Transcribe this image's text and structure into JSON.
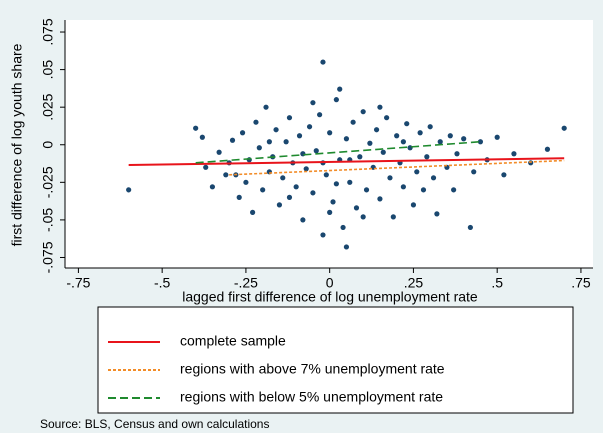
{
  "chart_data": {
    "type": "scatter",
    "xlabel": "lagged first difference of log unemployment rate",
    "ylabel": "first difference of log youth share",
    "note": "Source: BLS, Census and own calculations",
    "xlim": [
      -0.79,
      0.786
    ],
    "ylim": [
      -0.082,
      0.083
    ],
    "xticks": [
      {
        "value": -0.75,
        "label": "-.75"
      },
      {
        "value": -0.5,
        "label": "-.5"
      },
      {
        "value": -0.25,
        "label": "-.25"
      },
      0,
      {
        "value": 0.25,
        "label": ".25"
      },
      {
        "value": 0.5,
        "label": ".5"
      },
      {
        "value": 0.75,
        "label": ".75"
      }
    ],
    "yticks": [
      {
        "value": -0.075,
        "label": "-.075"
      },
      {
        "value": -0.05,
        "label": "-.05"
      },
      {
        "value": -0.025,
        "label": "-.025"
      },
      0,
      {
        "value": 0.025,
        "label": ".025"
      },
      {
        "value": 0.05,
        "label": ".05"
      },
      {
        "value": 0.075,
        "label": ".075"
      }
    ],
    "color": "#1a476f",
    "x": [
      -0.6,
      -0.4,
      -0.38,
      -0.37,
      -0.35,
      -0.33,
      -0.3,
      -0.29,
      -0.28,
      -0.27,
      -0.26,
      -0.25,
      -0.24,
      -0.23,
      -0.22,
      -0.21,
      -0.2,
      -0.19,
      -0.18,
      -0.17,
      -0.16,
      -0.15,
      -0.14,
      -0.13,
      -0.12,
      -0.11,
      -0.1,
      -0.09,
      -0.08,
      -0.07,
      -0.06,
      -0.05,
      -0.04,
      -0.03,
      -0.02,
      -0.02,
      -0.01,
      0,
      0.01,
      0.02,
      0.03,
      0.03,
      0.04,
      0.05,
      0.05,
      0.06,
      0.07,
      0.08,
      0.09,
      0.1,
      0.11,
      0.12,
      0.13,
      0.14,
      0.15,
      0.16,
      0.17,
      0.18,
      0.19,
      0.2,
      0.21,
      0.22,
      0.23,
      0.24,
      0.25,
      0.26,
      0.27,
      0.28,
      0.29,
      0.3,
      0.31,
      0.32,
      0.33,
      0.35,
      0.36,
      0.37,
      0.38,
      0.4,
      0.42,
      0.43,
      0.45,
      0.47,
      0.5,
      0.52,
      0.55,
      0.6,
      0.65,
      0.7,
      -0.31,
      -0.12,
      0,
      0.1,
      -0.05,
      0.15,
      -0.18,
      0.22,
      -0.08,
      0.06,
      -0.02,
      0.02
    ],
    "y": [
      -0.03,
      0.011,
      0.005,
      -0.015,
      -0.028,
      -0.005,
      -0.012,
      0.003,
      -0.02,
      -0.035,
      0.008,
      -0.025,
      -0.01,
      -0.045,
      0.015,
      -0.002,
      -0.03,
      0.025,
      -0.018,
      -0.008,
      0.01,
      -0.04,
      -0.022,
      0.002,
      0.018,
      -0.012,
      -0.028,
      0.006,
      -0.05,
      -0.016,
      0.012,
      -0.032,
      -0.004,
      0.02,
      0.055,
      -0.06,
      -0.02,
      0.008,
      -0.038,
      0.03,
      0.037,
      -0.01,
      -0.055,
      -0.068,
      0.004,
      -0.025,
      0.015,
      -0.042,
      -0.008,
      0.022,
      -0.03,
      0.001,
      -0.015,
      0.01,
      -0.036,
      -0.005,
      0.018,
      -0.022,
      -0.048,
      0.006,
      -0.012,
      -0.028,
      0.014,
      -0.002,
      -0.04,
      -0.018,
      0.008,
      -0.03,
      -0.008,
      0.012,
      -0.022,
      -0.046,
      0.002,
      -0.015,
      0.006,
      -0.03,
      -0.006,
      0.004,
      -0.055,
      -0.018,
      0.002,
      -0.01,
      0.005,
      -0.02,
      -0.006,
      -0.012,
      -0.003,
      0.011,
      -0.02,
      -0.035,
      -0.045,
      -0.048,
      0.028,
      0.025,
      0.002,
      0.002,
      -0.006,
      -0.01,
      -0.012,
      -0.026
    ],
    "lines": [
      {
        "name": "complete sample",
        "color": "#e8141b",
        "style": "solid",
        "x": [
          -0.6,
          0.7
        ],
        "values": [
          -0.0135,
          -0.009
        ]
      },
      {
        "name": "regions with above 7% unemployment rate",
        "color": "#f28c28",
        "style": "dotted",
        "x": [
          -0.3,
          0.7
        ],
        "values": [
          -0.02,
          -0.0105
        ]
      },
      {
        "name": "regions with below 5% unemployment rate",
        "color": "#1f8a2e",
        "style": "dashed",
        "x": [
          -0.4,
          0.45
        ],
        "values": [
          -0.012,
          0.002
        ]
      }
    ]
  }
}
